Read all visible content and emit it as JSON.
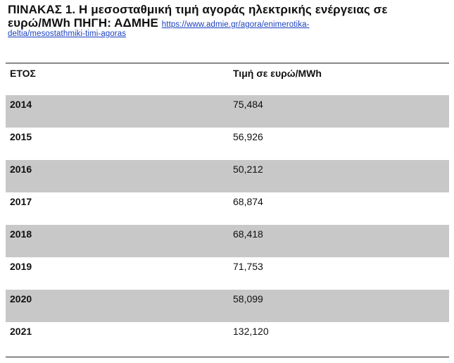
{
  "caption": {
    "title_line1": "ΠΙΝΑΚΑΣ 1. Η μεσοσταθμική τιμή αγοράς ηλεκτρικής ενέργειας σε",
    "title_line2": "ευρώ/MWh ΠΗΓΗ: ΑΔΜΗΕ",
    "link_part1": "https://www.admie.gr/agora/enimerotika-",
    "link_part2": "deltia/mesostathmiki-timi-agoras"
  },
  "table": {
    "headers": {
      "year": "ΕΤΟΣ",
      "price": "Τιμή σε ευρώ/MWh"
    },
    "rows": [
      {
        "year": "2014",
        "price": "75,484",
        "shaded": true
      },
      {
        "year": "2015",
        "price": "56,926",
        "shaded": false
      },
      {
        "year": "2016",
        "price": "50,212",
        "shaded": true
      },
      {
        "year": "2017",
        "price": "68,874",
        "shaded": false
      },
      {
        "year": "2018",
        "price": "68,418",
        "shaded": true
      },
      {
        "year": "2019",
        "price": "71,753",
        "shaded": false
      },
      {
        "year": "2020",
        "price": "58,099",
        "shaded": true
      },
      {
        "year": "2021",
        "price": "132,120",
        "shaded": false
      }
    ]
  },
  "colors": {
    "shaded_row": "#c8c8c8",
    "link": "#1a3fc0",
    "rule": "#222222"
  }
}
